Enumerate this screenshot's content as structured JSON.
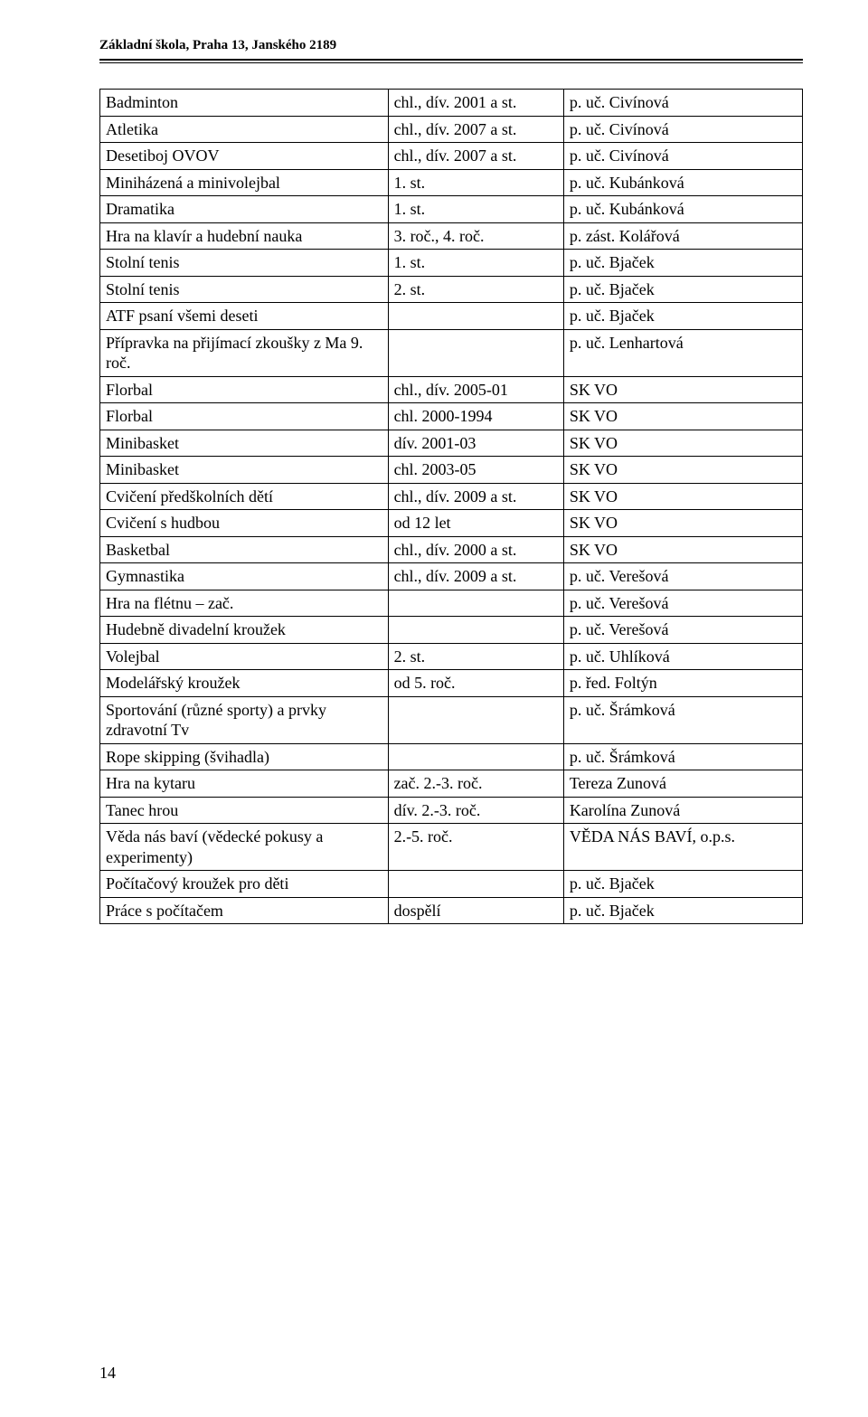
{
  "header": {
    "school": "Základní škola, Praha 13, Janského 2189"
  },
  "table": {
    "rows": [
      {
        "activity": "Badminton",
        "who": "chl., dív. 2001 a st.",
        "leader": "p. uč. Civínová",
        "pad": false
      },
      {
        "activity": "Atletika",
        "who": "chl., dív. 2007 a st.",
        "leader": "p. uč. Civínová",
        "pad": false
      },
      {
        "activity": "Desetiboj OVOV",
        "who": "chl., dív. 2007 a st.",
        "leader": "p. uč. Civínová",
        "pad": false
      },
      {
        "activity": "Miniházená a minivolejbal",
        "who": "1. st.",
        "leader": "p. uč. Kubánková",
        "pad": false
      },
      {
        "activity": "Dramatika",
        "who": "1. st.",
        "leader": "p. uč. Kubánková",
        "pad": false
      },
      {
        "activity": "Hra na klavír a hudební nauka",
        "who": "3. roč., 4. roč.",
        "leader": "p. zást. Kolářová",
        "pad": false
      },
      {
        "activity": "Stolní tenis",
        "who": "1. st.",
        "leader": "p. uč. Bjaček",
        "pad": false
      },
      {
        "activity": "Stolní tenis",
        "who": "2. st.",
        "leader": "p. uč. Bjaček",
        "pad": false
      },
      {
        "activity": "ATF psaní všemi deseti",
        "who": "",
        "leader": "p. uč. Bjaček",
        "pad": false
      },
      {
        "activity": "Přípravka na přijímací zkoušky z Ma 9. roč.",
        "who": "",
        "leader": "p. uč. Lenhartová",
        "pad": false
      },
      {
        "activity": "Florbal",
        "who": "chl., dív. 2005-01",
        "leader": "SK VO",
        "pad": false
      },
      {
        "activity": "Florbal",
        "who": "chl. 2000-1994",
        "leader": "SK VO",
        "pad": false
      },
      {
        "activity": "Minibasket",
        "who": "dív. 2001-03",
        "leader": "SK VO",
        "pad": false
      },
      {
        "activity": "Minibasket",
        "who": "chl. 2003-05",
        "leader": "SK VO",
        "pad": false
      },
      {
        "activity": "Cvičení předškolních dětí",
        "who": "chl., dív. 2009 a st.",
        "leader": "SK VO",
        "pad": false
      },
      {
        "activity": "Cvičení s hudbou",
        "who": "od 12 let",
        "leader": "SK VO",
        "pad": false
      },
      {
        "activity": "Basketbal",
        "who": "chl., dív. 2000 a st.",
        "leader": "SK VO",
        "pad": false
      },
      {
        "activity": "Gymnastika",
        "who": "chl., dív. 2009 a st.",
        "leader": "p. uč. Verešová",
        "pad": false
      },
      {
        "activity": "Hra na flétnu – zač.",
        "who": "",
        "leader": "p. uč. Verešová",
        "pad": false
      },
      {
        "activity": "Hudebně divadelní kroužek",
        "who": "",
        "leader": "p. uč. Verešová",
        "pad": false
      },
      {
        "activity": "Volejbal",
        "who": "2. st.",
        "leader": "p. uč. Uhlíková",
        "pad": false
      },
      {
        "activity": "Modelářský kroužek",
        "who": "od 5. roč.",
        "leader": "p. řed. Foltýn",
        "pad": false
      },
      {
        "activity": "Sportování (různé sporty) a prvky zdravotní Tv",
        "who": "",
        "leader": "p. uč. Šrámková",
        "pad": false
      },
      {
        "activity": "Rope skipping (švihadla)",
        "who": "",
        "leader": "p. uč. Šrámková",
        "pad": false
      },
      {
        "activity": "Hra na kytaru",
        "who": "zač. 2.-3. roč.",
        "leader": "Tereza Zunová",
        "pad": false
      },
      {
        "activity": "Tanec hrou",
        "who": "dív. 2.-3. roč.",
        "leader": "Karolína Zunová",
        "pad": false
      },
      {
        "activity": "Věda nás baví (vědecké pokusy a experimenty)",
        "who": " 2.-5. roč.",
        "leader": " VĚDA NÁS BAVÍ, o.p.s.",
        "pad": false
      },
      {
        "activity": " Počítačový kroužek pro děti",
        "who": "",
        "leader": " p. uč. Bjaček",
        "pad": true
      },
      {
        "activity": " Práce s počítačem",
        "who": " dospělí",
        "leader": " p. uč. Bjaček",
        "pad": true
      }
    ]
  },
  "page_number": "14"
}
